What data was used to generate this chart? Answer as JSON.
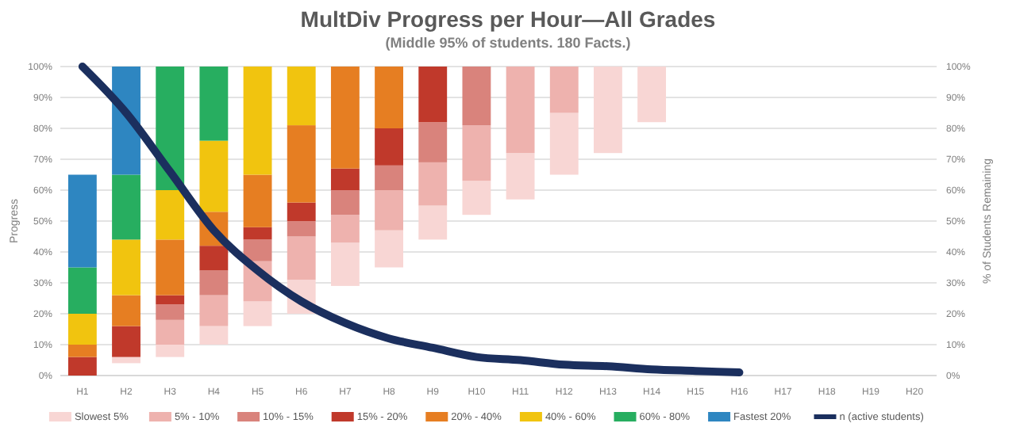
{
  "chart_data": {
    "type": "bar",
    "title": "MultDiv Progress per Hour—All Grades",
    "subtitle": "(Middle 95% of students. 180 Facts.)",
    "ylabel": "Progress",
    "y2label": "% of Students Remaining",
    "categories": [
      "H1",
      "H2",
      "H3",
      "H4",
      "H5",
      "H6",
      "H7",
      "H8",
      "H9",
      "H10",
      "H11",
      "H12",
      "H13",
      "H14",
      "H15",
      "H16",
      "H17",
      "H18",
      "H19",
      "H20"
    ],
    "stacked": true,
    "series": [
      {
        "name": "Slowest 5%",
        "color": "#f8d6d4",
        "base": [
          null,
          4,
          6,
          10,
          16,
          20,
          29,
          35,
          44,
          52,
          57,
          65,
          72,
          82,
          null,
          null,
          null,
          null,
          null,
          null
        ],
        "values": [
          0,
          2,
          4,
          6,
          8,
          11,
          14,
          12,
          11,
          11,
          15,
          20,
          28,
          18,
          null,
          null,
          null,
          null,
          null,
          null
        ]
      },
      {
        "name": "5% - 10%",
        "color": "#eeb2ae",
        "values": [
          0,
          0,
          8,
          10,
          13,
          14,
          9,
          13,
          14,
          18,
          28,
          15,
          null,
          null,
          null,
          null,
          null,
          null,
          null,
          null
        ]
      },
      {
        "name": "10% - 15%",
        "color": "#d9837c",
        "values": [
          0,
          0,
          5,
          8,
          7,
          5,
          8,
          8,
          13,
          19,
          null,
          null,
          null,
          null,
          null,
          null,
          null,
          null,
          null,
          null
        ]
      },
      {
        "name": "15% - 20%",
        "color": "#c0392b",
        "values": [
          6,
          10,
          3,
          8,
          4,
          6,
          7,
          12,
          18,
          null,
          null,
          null,
          null,
          null,
          null,
          null,
          null,
          null,
          null,
          null
        ]
      },
      {
        "name": "20% - 40%",
        "color": "#e67e22",
        "values": [
          4,
          10,
          18,
          11,
          17,
          25,
          33,
          20,
          null,
          null,
          null,
          null,
          null,
          null,
          null,
          null,
          null,
          null,
          null,
          null
        ]
      },
      {
        "name": "40% - 60%",
        "color": "#f1c40f",
        "values": [
          10,
          18,
          16,
          23,
          35,
          19,
          null,
          null,
          null,
          null,
          null,
          null,
          null,
          null,
          null,
          null,
          null,
          null,
          null,
          null
        ]
      },
      {
        "name": "60% - 80%",
        "color": "#27ae60",
        "values": [
          15,
          21,
          40,
          24,
          null,
          null,
          null,
          null,
          null,
          null,
          null,
          null,
          null,
          null,
          null,
          null,
          null,
          null,
          null,
          null
        ]
      },
      {
        "name": "Fastest 20%",
        "color": "#2e86c1",
        "values": [
          30,
          35,
          null,
          null,
          null,
          null,
          null,
          null,
          null,
          null,
          null,
          null,
          null,
          null,
          null,
          null,
          null,
          null,
          null,
          null
        ]
      },
      {
        "name": "n (active students)",
        "type": "line",
        "axis": "y2",
        "color": "#1b2f5e",
        "values": [
          100,
          85,
          66,
          47,
          34,
          24,
          17,
          12,
          9,
          6,
          5,
          3.5,
          3,
          2,
          1.5,
          1,
          null,
          null,
          null,
          null
        ]
      }
    ],
    "ylim": [
      0,
      100
    ],
    "yticks": [
      {
        "value": 0,
        "label": "0%"
      },
      {
        "value": 10,
        "label": "10%"
      },
      {
        "value": 20,
        "label": "20%"
      },
      {
        "value": 30,
        "label": "30%"
      },
      {
        "value": 40,
        "label": "40%"
      },
      {
        "value": 50,
        "label": "50%"
      },
      {
        "value": 60,
        "label": "60%"
      },
      {
        "value": 70,
        "label": "70%"
      },
      {
        "value": 80,
        "label": "80%"
      },
      {
        "value": 90,
        "label": "90%"
      },
      {
        "value": 100,
        "label": "100%"
      }
    ],
    "y2lim": [
      0,
      100
    ],
    "y2ticks": [
      {
        "value": 0,
        "label": "0%"
      },
      {
        "value": 10,
        "label": "10%"
      },
      {
        "value": 20,
        "label": "20%"
      },
      {
        "value": 30,
        "label": "30%"
      },
      {
        "value": 40,
        "label": "40%"
      },
      {
        "value": 50,
        "label": "50%"
      },
      {
        "value": 60,
        "label": "60%"
      },
      {
        "value": 70,
        "label": "70%"
      },
      {
        "value": 80,
        "label": "80%"
      },
      {
        "value": 90,
        "label": "90%"
      },
      {
        "value": 100,
        "label": "100%"
      }
    ],
    "grid": "y",
    "legend": "bottom"
  }
}
